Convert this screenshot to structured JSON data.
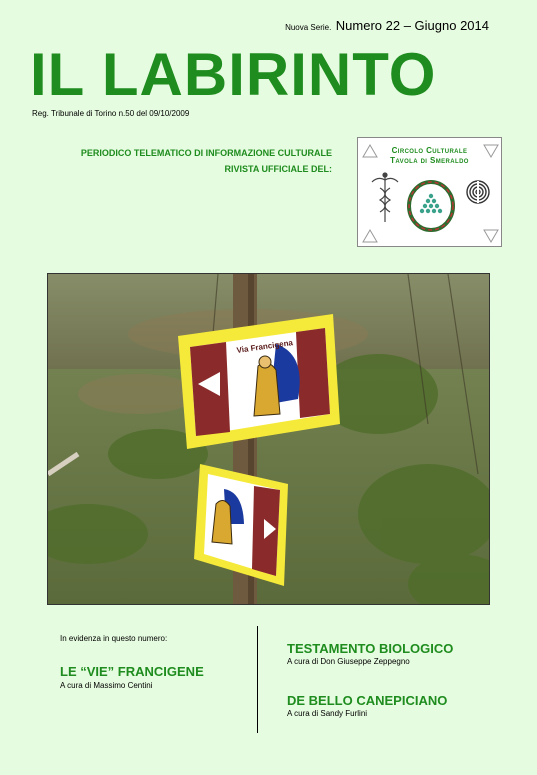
{
  "header": {
    "series_small": "Nuova Serie.",
    "series_big": "Numero 22 – Giugno 2014",
    "title": "IL LABIRINTO",
    "registration": "Reg. Tribunale di Torino n.50 del 09/10/2009",
    "periodico": "PERIODICO TELEMATICO DI INFORMAZIONE CULTURALE",
    "rivista": "RIVISTA UFFICIALE DEL:"
  },
  "logo": {
    "line1": "Circolo Culturale",
    "line2": "Tavola di Smeraldo",
    "icons": [
      "triangle-icon",
      "caduceus-icon",
      "ouroboros-icon",
      "labyrinth-icon"
    ]
  },
  "photo": {
    "sign_label": "Via Francigena"
  },
  "highlights": {
    "intro": "In evidenza in questo numero:",
    "articles": [
      {
        "title": "LE “VIE” FRANCIGENE",
        "byline": "A cura di Massimo Centini"
      },
      {
        "title": "TESTAMENTO BIOLOGICO",
        "byline": "A cura di Don Giuseppe Zeppegno"
      },
      {
        "title": "DE BELLO CANEPICIANO",
        "byline": "A cura di Sandy Furlini"
      }
    ]
  },
  "colors": {
    "background": "#e6fce0",
    "accent_green": "#1e8c1e"
  }
}
